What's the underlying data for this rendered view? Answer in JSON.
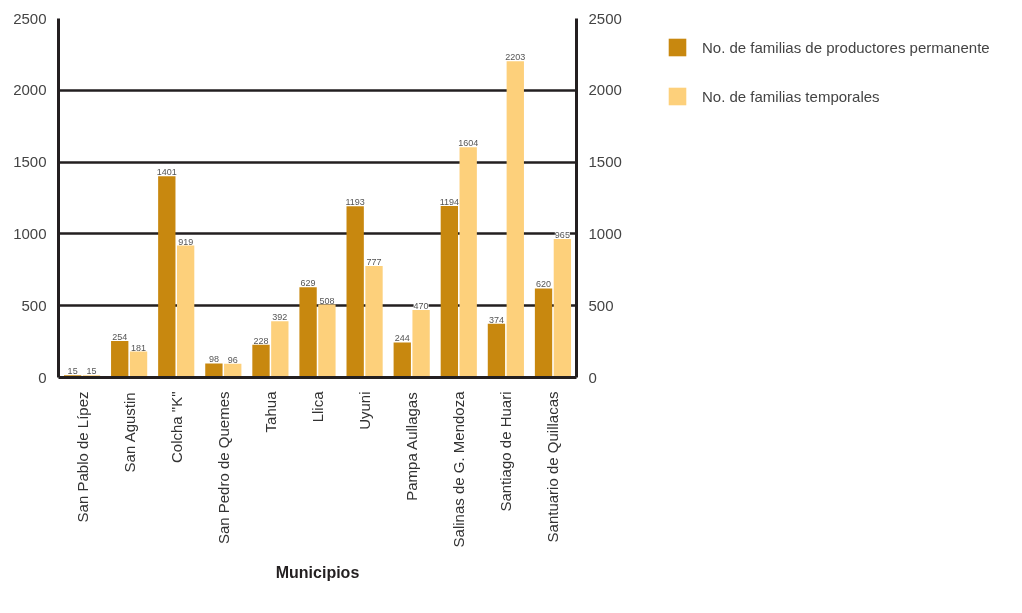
{
  "chart_data": {
    "type": "bar",
    "xlabel": "Municipios",
    "categories": [
      "San Pablo de Lípez",
      "San Agustin",
      "Colcha \"K\"",
      "San Pedro de Quemes",
      "Tahua",
      "Llica",
      "Uyuni",
      "Pampa Aullagas",
      "Salinas de G. Mendoza",
      "Santiago de Huari",
      "Santuario de Quillacas"
    ],
    "series": [
      {
        "name": "No. de familias de productores permanente",
        "color": "#c8880f",
        "values": [
          15,
          254,
          1401,
          98,
          228,
          629,
          1193,
          244,
          1194,
          374,
          620
        ]
      },
      {
        "name": "No. de familias temporales",
        "color": "#fdd07b",
        "values": [
          15,
          181,
          919,
          96,
          392,
          508,
          777,
          470,
          1604,
          2203,
          965
        ]
      }
    ],
    "ylim": [
      0,
      2500
    ],
    "yticks": [
      0,
      500,
      1000,
      1500,
      2000,
      2500
    ],
    "y2lim": [
      0,
      2500
    ],
    "y2ticks": [
      0,
      500,
      1000,
      1500,
      2000,
      2500
    ],
    "grid": "y",
    "legend": "top right",
    "data_labels": true
  }
}
